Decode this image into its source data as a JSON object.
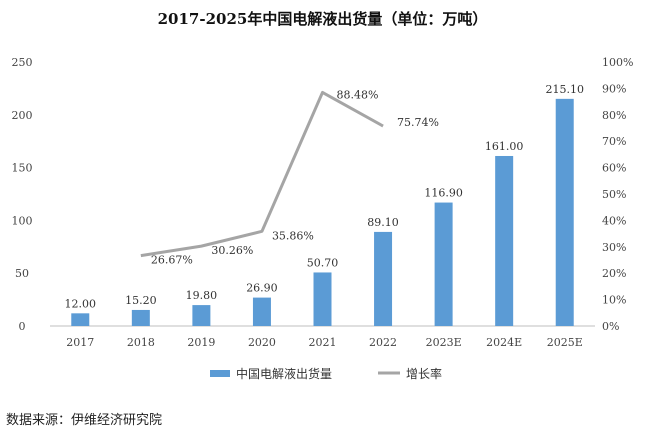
{
  "chart_data": {
    "type": "bar",
    "title": "2017-2025年中国电解液出货量（单位：万吨）",
    "categories": [
      "2017",
      "2018",
      "2019",
      "2020",
      "2021",
      "2022",
      "2023E",
      "2024E",
      "2025E"
    ],
    "series": [
      {
        "name": "中国电解液出货量",
        "type": "bar",
        "axis": "left",
        "color": "#5B9BD5",
        "values": [
          12.0,
          15.2,
          19.8,
          26.9,
          50.7,
          89.1,
          116.9,
          161.0,
          215.1
        ],
        "labels": [
          "12.00",
          "15.20",
          "19.80",
          "26.90",
          "50.70",
          "89.10",
          "116.90",
          "161.00",
          "215.10"
        ]
      },
      {
        "name": "增长率",
        "type": "line",
        "axis": "right",
        "color": "#A5A5A5",
        "values": [
          null,
          26.67,
          30.26,
          35.86,
          88.48,
          75.74,
          null,
          null,
          null
        ],
        "labels": [
          "",
          "26.67%",
          "30.26%",
          "35.86%",
          "88.48%",
          "75.74%",
          "",
          "",
          ""
        ]
      }
    ],
    "y_left": {
      "min": 0,
      "max": 250,
      "ticks": [
        "0",
        "50",
        "100",
        "150",
        "200",
        "250"
      ]
    },
    "y_right": {
      "min": 0,
      "max": 100,
      "ticks": [
        "0%",
        "10%",
        "20%",
        "30%",
        "40%",
        "50%",
        "60%",
        "70%",
        "80%",
        "90%",
        "100%"
      ]
    },
    "grid": false,
    "legend_position": "bottom"
  },
  "source": "数据来源：伊维经济研究院"
}
